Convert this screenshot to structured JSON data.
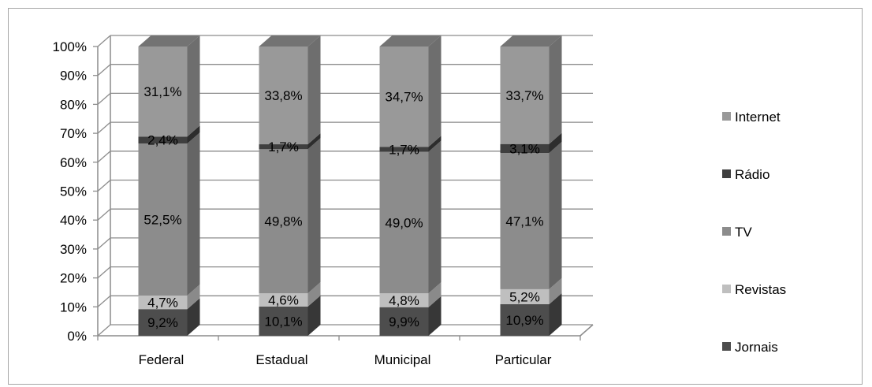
{
  "chart_data": {
    "type": "bar",
    "stacked": true,
    "percent_stacked": true,
    "three_d": true,
    "categories": [
      "Federal",
      "Estadual",
      "Municipal",
      "Particular"
    ],
    "series": [
      {
        "name": "Jornais",
        "values": [
          9.2,
          10.1,
          9.9,
          10.9
        ],
        "labels": [
          "9,2%",
          "10,1%",
          "9,9%",
          "10,9%"
        ],
        "color": "#4d4d4d"
      },
      {
        "name": "Revistas",
        "values": [
          4.7,
          4.6,
          4.8,
          5.2
        ],
        "labels": [
          "4,7%",
          "4,6%",
          "4,8%",
          "5,2%"
        ],
        "color": "#bfbfbf"
      },
      {
        "name": "TV",
        "values": [
          52.5,
          49.8,
          49.0,
          47.1
        ],
        "labels": [
          "52,5%",
          "49,8%",
          "49,0%",
          "47,1%"
        ],
        "color": "#8c8c8c"
      },
      {
        "name": "Rádio",
        "values": [
          2.4,
          1.7,
          1.7,
          3.1
        ],
        "labels": [
          "2,4%",
          "1,7%",
          "1,7%",
          "3,1%"
        ],
        "color": "#3f3f3f"
      },
      {
        "name": "Internet",
        "values": [
          31.1,
          33.8,
          34.7,
          33.7
        ],
        "labels": [
          "31,1%",
          "33,8%",
          "34,7%",
          "33,7%"
        ],
        "color": "#999999"
      }
    ],
    "y_ticks": [
      "0%",
      "10%",
      "20%",
      "30%",
      "40%",
      "50%",
      "60%",
      "70%",
      "80%",
      "90%",
      "100%"
    ],
    "ylim": [
      0,
      100
    ],
    "grid": true,
    "legend_position": "right",
    "legend_order": [
      "Internet",
      "Rádio",
      "TV",
      "Revistas",
      "Jornais"
    ],
    "title": "",
    "xlabel": "",
    "ylabel": ""
  }
}
